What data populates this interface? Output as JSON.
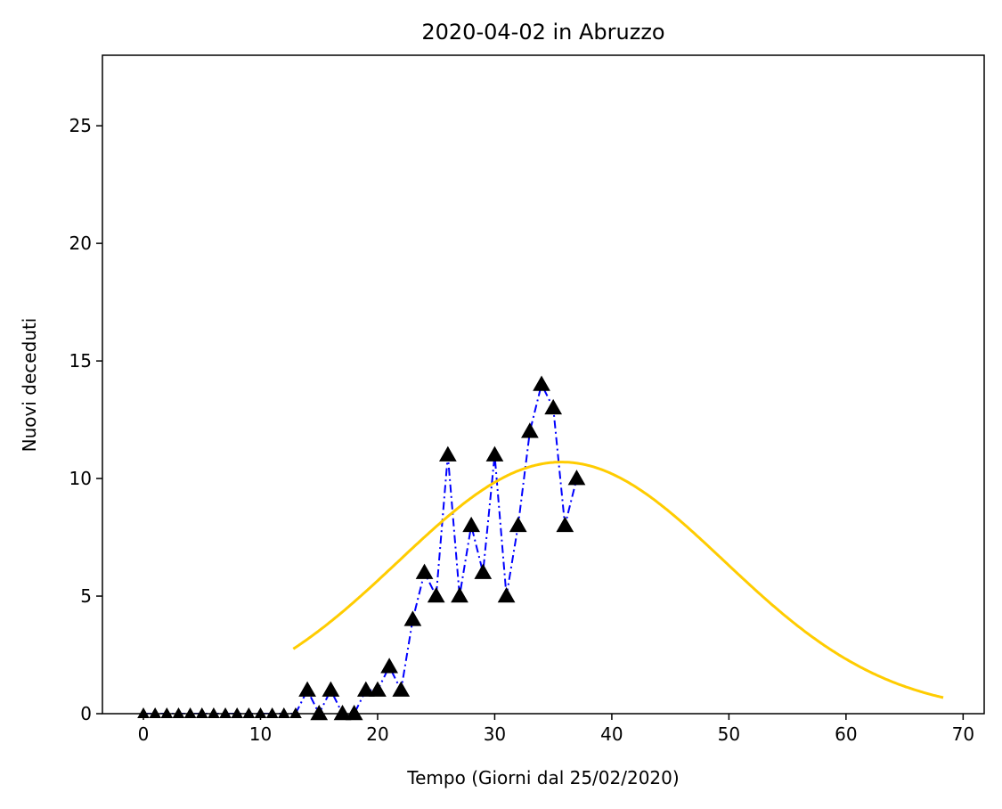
{
  "chart_data": {
    "type": "line",
    "title": "2020-04-02 in Abruzzo",
    "xlabel": "Tempo (Giorni dal 25/02/2020)",
    "ylabel": "Nuovi deceduti",
    "xlim": [
      -3.5,
      71.8
    ],
    "ylim": [
      0,
      28
    ],
    "xticks": [
      0,
      10,
      20,
      30,
      40,
      50,
      60,
      70
    ],
    "yticks": [
      0,
      5,
      10,
      15,
      20,
      25
    ],
    "grid": false,
    "series": [
      {
        "style": "dash-dot line with triangle markers",
        "line_color": "#0000ff",
        "marker_color": "#000000",
        "x": [
          0,
          1,
          2,
          3,
          4,
          5,
          6,
          7,
          8,
          9,
          10,
          11,
          12,
          13,
          14,
          15,
          16,
          17,
          18,
          19,
          20,
          21,
          22,
          23,
          24,
          25,
          26,
          27,
          28,
          29,
          30,
          31,
          32,
          33,
          34,
          35,
          36,
          37
        ],
        "y": [
          0,
          0,
          0,
          0,
          0,
          0,
          0,
          0,
          0,
          0,
          0,
          0,
          0,
          0,
          1,
          0,
          1,
          0,
          0,
          1,
          1,
          2,
          1,
          4,
          6,
          5,
          11,
          5,
          8,
          6,
          11,
          5,
          8,
          12,
          14,
          13,
          8,
          10
        ]
      },
      {
        "style": "solid fitted curve",
        "color": "#ffcc00",
        "model": "gaussian",
        "x_start": 12.8,
        "x_end": 68.3,
        "peak_x": 35.7,
        "peak_y": 10.7,
        "sigma": 13.9
      }
    ]
  }
}
